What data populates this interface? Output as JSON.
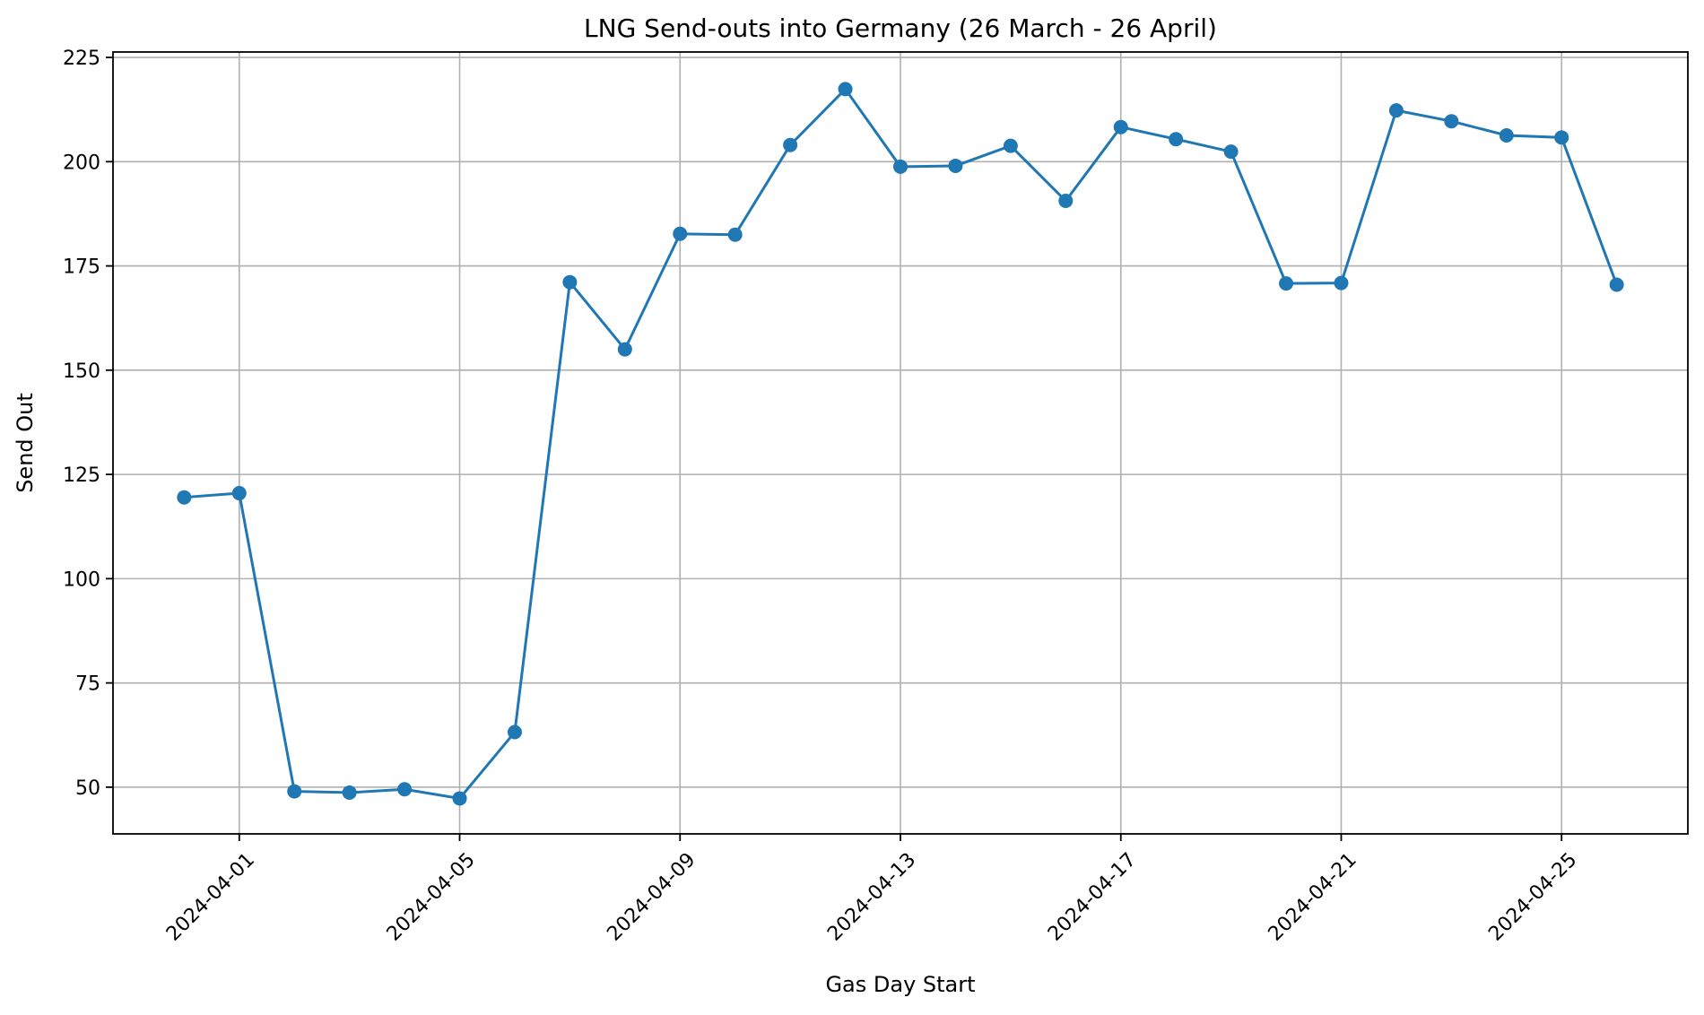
{
  "chart_data": {
    "type": "line",
    "title": "LNG Send-outs into Germany (26 March - 26 April)",
    "xlabel": "Gas Day Start",
    "ylabel": "Send Out",
    "x": [
      "2024-03-31",
      "2024-04-01",
      "2024-04-02",
      "2024-04-03",
      "2024-04-04",
      "2024-04-05",
      "2024-04-06",
      "2024-04-07",
      "2024-04-08",
      "2024-04-09",
      "2024-04-10",
      "2024-04-11",
      "2024-04-12",
      "2024-04-13",
      "2024-04-14",
      "2024-04-15",
      "2024-04-16",
      "2024-04-17",
      "2024-04-18",
      "2024-04-19",
      "2024-04-20",
      "2024-04-21",
      "2024-04-22",
      "2024-04-23",
      "2024-04-24",
      "2024-04-25",
      "2024-04-26"
    ],
    "series": [
      {
        "color": "#1f77b4",
        "marker": "circle",
        "values": [
          119.5,
          120.5,
          49,
          48.7,
          49.5,
          47.3,
          63.2,
          171.1,
          155,
          182.7,
          182.5,
          204,
          217.4,
          198.8,
          199,
          203.8,
          190.6,
          208.3,
          205.4,
          202.4,
          170.8,
          170.9,
          212.3,
          209.7,
          206.3,
          205.8,
          170.5
        ]
      }
    ],
    "xticks": [
      "2024-04-01",
      "2024-04-05",
      "2024-04-09",
      "2024-04-13",
      "2024-04-17",
      "2024-04-21",
      "2024-04-25"
    ],
    "yticks": [
      50,
      75,
      100,
      125,
      150,
      175,
      200,
      225
    ],
    "xlim": [
      "2024-03-29T17:00",
      "2024-04-27T07:00"
    ],
    "ylim": [
      38.8,
      226.3
    ],
    "grid": true,
    "legend": "none"
  }
}
